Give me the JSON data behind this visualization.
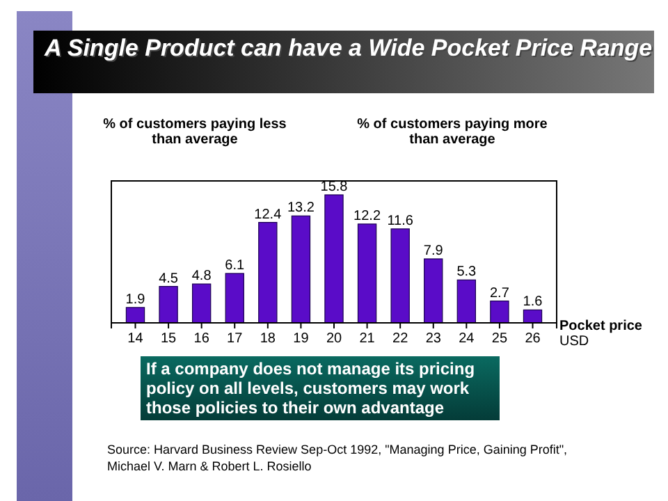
{
  "chart_data": {
    "type": "bar",
    "title": "A Single Product can have a Wide Pocket Price Range",
    "xlabel": "Pocket price USD",
    "categories": [
      "14",
      "15",
      "16",
      "17",
      "18",
      "19",
      "20",
      "21",
      "22",
      "23",
      "24",
      "25",
      "26"
    ],
    "values": [
      1.9,
      4.5,
      4.8,
      6.1,
      12.4,
      13.2,
      15.8,
      12.2,
      11.6,
      7.9,
      5.3,
      2.7,
      1.6
    ],
    "color": "#5a0cc8",
    "data_labels": true,
    "annotations": [
      "% of customers paying less than average",
      "% of customers paying more than average",
      "If a company does not manage its pricing policy on all levels, customers may work those policies to their own advantage",
      "Source: Harvard Business Review Sep-Oct 1992, \"Managing Price, Gaining Profit\", Michael V. Marn & Robert L. Rosiello"
    ]
  }
}
